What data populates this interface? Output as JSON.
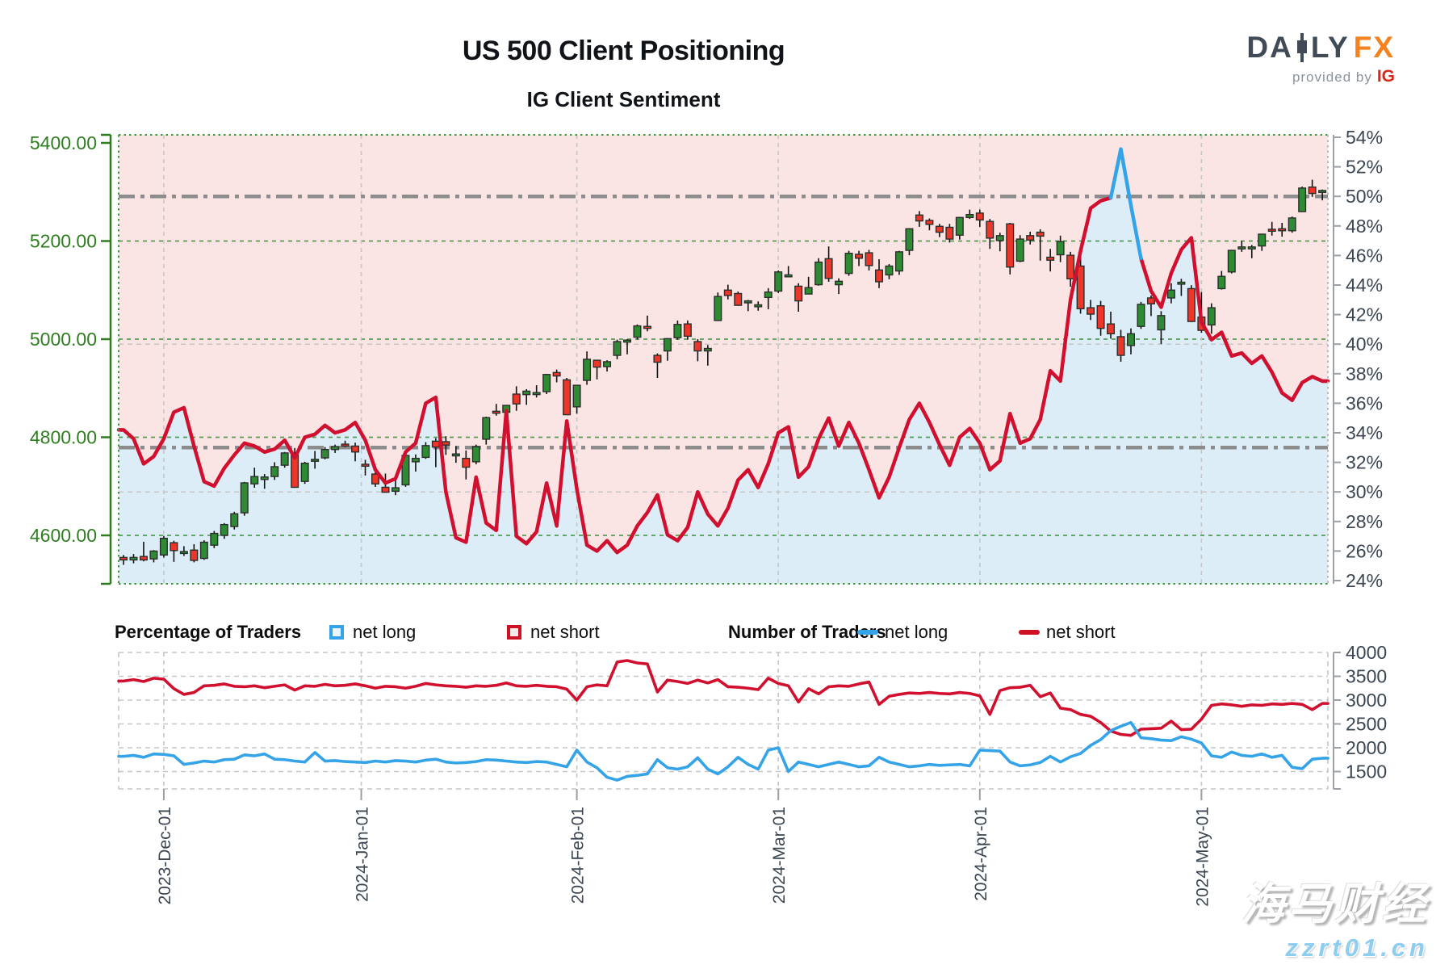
{
  "header": {
    "title": "US 500 Client Positioning",
    "subtitle": "IG Client Sentiment",
    "logo": {
      "part1": "DA",
      "part2": "LY",
      "fx": "FX",
      "provided_by": "provided by",
      "ig": "IG"
    }
  },
  "legend": {
    "percentage_title": "Percentage of Traders",
    "number_title": "Number of Traders",
    "net_long": "net long",
    "net_short": "net short"
  },
  "watermark": {
    "name": "海马财经",
    "site": "zzrt01.cn"
  },
  "colors": {
    "candle_up": "#2e8b33",
    "candle_down": "#ee352a",
    "candle_stroke": "#2b2f2b",
    "wick": "#111111",
    "sentiment_short": "#d10f2e",
    "sentiment_long": "#35a3e8",
    "fill_above_line": "#fae4e4",
    "fill_below_line": "#ddedf7",
    "grid_green": "#4aa34a",
    "grid_minor": "#c6c6c6",
    "ref_line_gray": "#8c8c8c",
    "axis_green": "#2e7d1f",
    "axis_gray": "#9aa0a6",
    "label_green": "#2e7d1f",
    "label_slate": "#3b4652",
    "border_dotted_green": "#3f9a3f",
    "border_dotted_gray": "#b9b9b9"
  },
  "chart_data": [
    {
      "type": "candlestick+line",
      "title": "IG Client Sentiment",
      "left_axis": {
        "label": "price",
        "tick_values": [
          5400,
          5200,
          5000,
          4800,
          4600
        ],
        "tick_labels": [
          "5400.00",
          "5200.00",
          "5000.00",
          "4800.00",
          "4600.00"
        ],
        "range": [
          4500,
          5416
        ]
      },
      "right_axis": {
        "suffix": "%",
        "tick_values": [
          54,
          52,
          50,
          48,
          46,
          44,
          42,
          40,
          38,
          36,
          34,
          32,
          30,
          28,
          26,
          24
        ],
        "range": [
          23.7,
          54
        ]
      },
      "x_ticks": [
        {
          "label": "2023-Dec-01",
          "index": 4
        },
        {
          "label": "2024-Jan-01",
          "index": 23.6
        },
        {
          "label": "2024-Feb-01",
          "index": 45
        },
        {
          "label": "2024-Mar-01",
          "index": 65
        },
        {
          "label": "2024-Apr-01",
          "index": 85
        },
        {
          "label": "2024-May-01",
          "index": 107
        }
      ],
      "reference_lines_pct": [
        50,
        33
      ],
      "minor_gridlines_pct": [
        40,
        30
      ],
      "candles": {
        "dates": [
          "2023-11-27",
          "2023-11-28",
          "2023-11-29",
          "2023-11-30",
          "2023-12-01",
          "2023-12-04",
          "2023-12-05",
          "2023-12-06",
          "2023-12-07",
          "2023-12-08",
          "2023-12-11",
          "2023-12-12",
          "2023-12-13",
          "2023-12-14",
          "2023-12-15",
          "2023-12-18",
          "2023-12-19",
          "2023-12-20",
          "2023-12-21",
          "2023-12-22",
          "2023-12-26",
          "2023-12-27",
          "2023-12-28",
          "2023-12-29",
          "2024-01-02",
          "2024-01-03",
          "2024-01-04",
          "2024-01-05",
          "2024-01-08",
          "2024-01-09",
          "2024-01-10",
          "2024-01-11",
          "2024-01-12",
          "2024-01-16",
          "2024-01-17",
          "2024-01-18",
          "2024-01-19",
          "2024-01-22",
          "2024-01-23",
          "2024-01-24",
          "2024-01-25",
          "2024-01-26",
          "2024-01-29",
          "2024-01-30",
          "2024-01-31",
          "2024-02-01",
          "2024-02-02",
          "2024-02-05",
          "2024-02-06",
          "2024-02-07",
          "2024-02-08",
          "2024-02-09",
          "2024-02-12",
          "2024-02-13",
          "2024-02-14",
          "2024-02-15",
          "2024-02-16",
          "2024-02-20",
          "2024-02-21",
          "2024-02-22",
          "2024-02-23",
          "2024-02-26",
          "2024-02-27",
          "2024-02-28",
          "2024-02-29",
          "2024-03-01",
          "2024-03-04",
          "2024-03-05",
          "2024-03-06",
          "2024-03-07",
          "2024-03-08",
          "2024-03-11",
          "2024-03-12",
          "2024-03-13",
          "2024-03-14",
          "2024-03-15",
          "2024-03-18",
          "2024-03-19",
          "2024-03-20",
          "2024-03-21",
          "2024-03-22",
          "2024-03-25",
          "2024-03-26",
          "2024-03-27",
          "2024-03-28",
          "2024-04-01",
          "2024-04-02",
          "2024-04-03",
          "2024-04-04",
          "2024-04-05",
          "2024-04-08",
          "2024-04-09",
          "2024-04-10",
          "2024-04-11",
          "2024-04-12",
          "2024-04-15",
          "2024-04-16",
          "2024-04-17",
          "2024-04-18",
          "2024-04-19",
          "2024-04-22",
          "2024-04-23",
          "2024-04-24",
          "2024-04-25",
          "2024-04-26",
          "2024-04-29",
          "2024-04-30",
          "2024-05-01",
          "2024-05-02",
          "2024-05-03",
          "2024-05-06",
          "2024-05-07",
          "2024-05-08",
          "2024-05-09",
          "2024-05-10",
          "2024-05-13",
          "2024-05-14",
          "2024-05-15",
          "2024-05-16",
          "2024-05-17"
        ],
        "open": [
          4555,
          4550,
          4557,
          4552,
          4560,
          4585,
          4565,
          4570,
          4553,
          4580,
          4600,
          4618,
          4646,
          4705,
          4714,
          4720,
          4743,
          4765,
          4710,
          4753,
          4758,
          4775,
          4786,
          4782,
          4745,
          4725,
          4698,
          4690,
          4703,
          4750,
          4759,
          4792,
          4791,
          4766,
          4757,
          4750,
          4796,
          4853,
          4851,
          4888,
          4887,
          4889,
          4893,
          4932,
          4917,
          4862,
          4916,
          4957,
          4944,
          4967,
          4996,
          5004,
          5026,
          4967,
          4976,
          5003,
          5031,
          4995,
          4976,
          5038,
          5100,
          5093,
          5074,
          5067,
          5085,
          5098,
          5130,
          5108,
          5092,
          5111,
          5164,
          5111,
          5134,
          5173,
          5176,
          5141,
          5131,
          5139,
          5181,
          5253,
          5242,
          5230,
          5228,
          5212,
          5248,
          5257,
          5240,
          5201,
          5235,
          5159,
          5211,
          5218,
          5167,
          5172,
          5171,
          5149,
          5064,
          5068,
          5031,
          5005,
          4987,
          5026,
          5084,
          5019,
          5084,
          5114,
          5103,
          5045,
          5029,
          5103,
          5137,
          5187,
          5184,
          5190,
          5224,
          5225,
          5221,
          5260,
          5310,
          5299
        ],
        "high": [
          4560,
          4562,
          4587,
          4570,
          4599,
          4589,
          4578,
          4582,
          4590,
          4609,
          4625,
          4648,
          4709,
          4738,
          4725,
          4749,
          4770,
          4778,
          4750,
          4772,
          4780,
          4785,
          4793,
          4789,
          4754,
          4729,
          4726,
          4721,
          4764,
          4765,
          4790,
          4798,
          4802,
          4782,
          4773,
          4785,
          4842,
          4868,
          4866,
          4904,
          4898,
          4906,
          4929,
          4938,
          4921,
          4907,
          4975,
          4958,
          4957,
          4999,
          5000,
          5030,
          5048,
          4971,
          5002,
          5038,
          5038,
          5000,
          4988,
          5095,
          5111,
          5097,
          5080,
          5077,
          5104,
          5140,
          5149,
          5114,
          5127,
          5165,
          5189,
          5124,
          5180,
          5180,
          5182,
          5163,
          5153,
          5180,
          5226,
          5261,
          5246,
          5235,
          5235,
          5249,
          5264,
          5264,
          5245,
          5217,
          5237,
          5212,
          5219,
          5224,
          5184,
          5211,
          5178,
          5168,
          5080,
          5078,
          5056,
          5019,
          5022,
          5076,
          5089,
          5057,
          5114,
          5123,
          5110,
          5096,
          5073,
          5139,
          5182,
          5200,
          5192,
          5215,
          5239,
          5237,
          5250,
          5311,
          5325,
          5305
        ],
        "low": [
          4540,
          4543,
          4547,
          4545,
          4555,
          4546,
          4558,
          4545,
          4550,
          4574,
          4593,
          4612,
          4640,
          4697,
          4695,
          4713,
          4738,
          4697,
          4705,
          4736,
          4755,
          4768,
          4780,
          4751,
          4722,
          4699,
          4687,
          4682,
          4699,
          4730,
          4756,
          4739,
          4764,
          4748,
          4714,
          4745,
          4785,
          4844,
          4845,
          4854,
          4866,
          4881,
          4888,
          4912,
          4846,
          4848,
          4907,
          4918,
          4934,
          4959,
          4969,
          4999,
          5016,
          4921,
          4956,
          4999,
          4999,
          4955,
          4946,
          5038,
          5081,
          5068,
          5057,
          5058,
          5061,
          5094,
          5127,
          5056,
          5092,
          5109,
          5117,
          5092,
          5129,
          5149,
          5140,
          5104,
          5122,
          5131,
          5171,
          5229,
          5222,
          5208,
          5197,
          5203,
          5245,
          5229,
          5184,
          5179,
          5132,
          5157,
          5193,
          5160,
          5138,
          5157,
          5107,
          5052,
          5039,
          5007,
          5001,
          4954,
          4969,
          5021,
          5047,
          4990,
          5073,
          5088,
          5035,
          5013,
          5011,
          5101,
          5134,
          5178,
          5165,
          5180,
          5211,
          5209,
          5217,
          5259,
          5290,
          5283
        ],
        "close": [
          4550,
          4555,
          4550,
          4568,
          4594,
          4569,
          4567,
          4549,
          4586,
          4604,
          4622,
          4644,
          4707,
          4720,
          4719,
          4740,
          4768,
          4698,
          4747,
          4755,
          4775,
          4781,
          4783,
          4770,
          4743,
          4705,
          4688,
          4697,
          4763,
          4757,
          4783,
          4780,
          4784,
          4766,
          4739,
          4781,
          4840,
          4850,
          4865,
          4868,
          4894,
          4891,
          4928,
          4925,
          4846,
          4906,
          4959,
          4943,
          4954,
          4995,
          4998,
          5027,
          5022,
          4953,
          5001,
          5030,
          5006,
          4976,
          4981,
          5087,
          5089,
          5069,
          5078,
          5070,
          5096,
          5137,
          5131,
          5078,
          5105,
          5157,
          5124,
          5118,
          5175,
          5165,
          5150,
          5117,
          5149,
          5178,
          5225,
          5241,
          5234,
          5218,
          5204,
          5248,
          5254,
          5243,
          5206,
          5211,
          5147,
          5204,
          5202,
          5210,
          5161,
          5199,
          5123,
          5062,
          5051,
          5022,
          5011,
          4967,
          5011,
          5071,
          5072,
          5048,
          5100,
          5116,
          5036,
          5018,
          5064,
          5128,
          5181,
          5188,
          5188,
          5214,
          5223,
          5221,
          5247,
          5308,
          5297,
          5303
        ]
      },
      "net_short_pct": [
        34.2,
        33.6,
        31.9,
        32.4,
        33.6,
        35.4,
        35.7,
        33.1,
        30.7,
        30.4,
        31.6,
        32.5,
        33.3,
        33.1,
        32.7,
        32.9,
        33.5,
        32.3,
        33.7,
        33.9,
        34.5,
        34.0,
        34.2,
        34.7,
        33.5,
        31.5,
        30.6,
        30.9,
        32.7,
        33.3,
        36.0,
        36.4,
        30.0,
        26.9,
        26.6,
        31.0,
        27.9,
        27.4,
        35.5,
        27.0,
        26.5,
        27.3,
        30.6,
        27.7,
        34.8,
        30.2,
        26.4,
        26.0,
        26.7,
        25.9,
        26.4,
        27.7,
        28.6,
        29.8,
        27.1,
        26.7,
        27.6,
        30.0,
        28.5,
        27.7,
        28.9,
        30.8,
        31.5,
        30.3,
        31.9,
        34.0,
        34.4,
        31.0,
        31.7,
        33.6,
        35.0,
        33.1,
        34.7,
        33.3,
        31.5,
        29.6,
        31.0,
        33.0,
        34.9,
        36.0,
        34.7,
        33.2,
        31.8,
        33.7,
        34.3,
        33.3,
        31.5,
        32.1,
        35.3,
        33.3,
        33.6,
        34.9,
        38.2,
        37.5,
        43.0,
        46.3,
        49.2,
        49.7,
        49.9,
        null,
        null,
        45.8,
        43.6,
        42.5,
        44.8,
        46.4,
        47.2,
        41.5,
        40.3,
        40.8,
        39.2,
        39.4,
        38.7,
        39.2,
        38.1,
        36.7,
        36.2,
        37.4,
        37.8,
        37.5
      ],
      "net_long_pct_visible": {
        "indices": [
          98,
          99,
          100,
          101
        ],
        "values": [
          49.9,
          53.2,
          49.4,
          45.8
        ]
      }
    },
    {
      "type": "line",
      "right_axis": {
        "tick_values": [
          4000,
          3500,
          3000,
          2500,
          2000,
          1500
        ],
        "range": [
          1135,
          4000
        ]
      },
      "series": [
        {
          "name": "net short",
          "values": [
            3400,
            3430,
            3390,
            3460,
            3440,
            3240,
            3120,
            3160,
            3300,
            3310,
            3340,
            3290,
            3280,
            3300,
            3260,
            3290,
            3320,
            3210,
            3300,
            3290,
            3330,
            3300,
            3310,
            3340,
            3300,
            3250,
            3290,
            3280,
            3250,
            3290,
            3350,
            3320,
            3300,
            3290,
            3270,
            3300,
            3290,
            3310,
            3360,
            3300,
            3290,
            3310,
            3290,
            3280,
            3230,
            3000,
            3280,
            3320,
            3300,
            3800,
            3830,
            3780,
            3760,
            3170,
            3420,
            3390,
            3350,
            3420,
            3360,
            3430,
            3280,
            3270,
            3250,
            3220,
            3460,
            3350,
            3300,
            2960,
            3240,
            3130,
            3280,
            3300,
            3290,
            3340,
            3380,
            2910,
            3080,
            3120,
            3150,
            3140,
            3160,
            3140,
            3130,
            3160,
            3140,
            3090,
            2700,
            3200,
            3260,
            3270,
            3310,
            3070,
            3150,
            2830,
            2800,
            2700,
            2660,
            2530,
            2350,
            2280,
            2260,
            2390,
            2400,
            2410,
            2560,
            2380,
            2390,
            2600,
            2890,
            2920,
            2900,
            2870,
            2900,
            2890,
            2920,
            2910,
            2930,
            2910,
            2800,
            2930
          ]
        },
        {
          "name": "net long",
          "values": [
            1820,
            1840,
            1800,
            1870,
            1860,
            1830,
            1650,
            1680,
            1720,
            1700,
            1750,
            1760,
            1850,
            1830,
            1870,
            1760,
            1750,
            1720,
            1700,
            1900,
            1720,
            1730,
            1710,
            1700,
            1690,
            1720,
            1700,
            1730,
            1720,
            1700,
            1740,
            1760,
            1700,
            1680,
            1690,
            1710,
            1750,
            1740,
            1720,
            1700,
            1690,
            1710,
            1700,
            1650,
            1600,
            1950,
            1700,
            1580,
            1380,
            1320,
            1400,
            1420,
            1450,
            1750,
            1580,
            1550,
            1600,
            1790,
            1550,
            1450,
            1600,
            1800,
            1650,
            1550,
            1950,
            2000,
            1500,
            1700,
            1650,
            1600,
            1650,
            1700,
            1650,
            1600,
            1620,
            1800,
            1700,
            1650,
            1600,
            1620,
            1650,
            1630,
            1640,
            1650,
            1620,
            1950,
            1940,
            1930,
            1700,
            1620,
            1640,
            1690,
            1820,
            1700,
            1810,
            1880,
            2050,
            2170,
            2360,
            2450,
            2530,
            2210,
            2190,
            2160,
            2150,
            2230,
            2180,
            2100,
            1830,
            1800,
            1910,
            1840,
            1820,
            1870,
            1800,
            1840,
            1590,
            1560,
            1760,
            1780
          ]
        }
      ]
    }
  ]
}
